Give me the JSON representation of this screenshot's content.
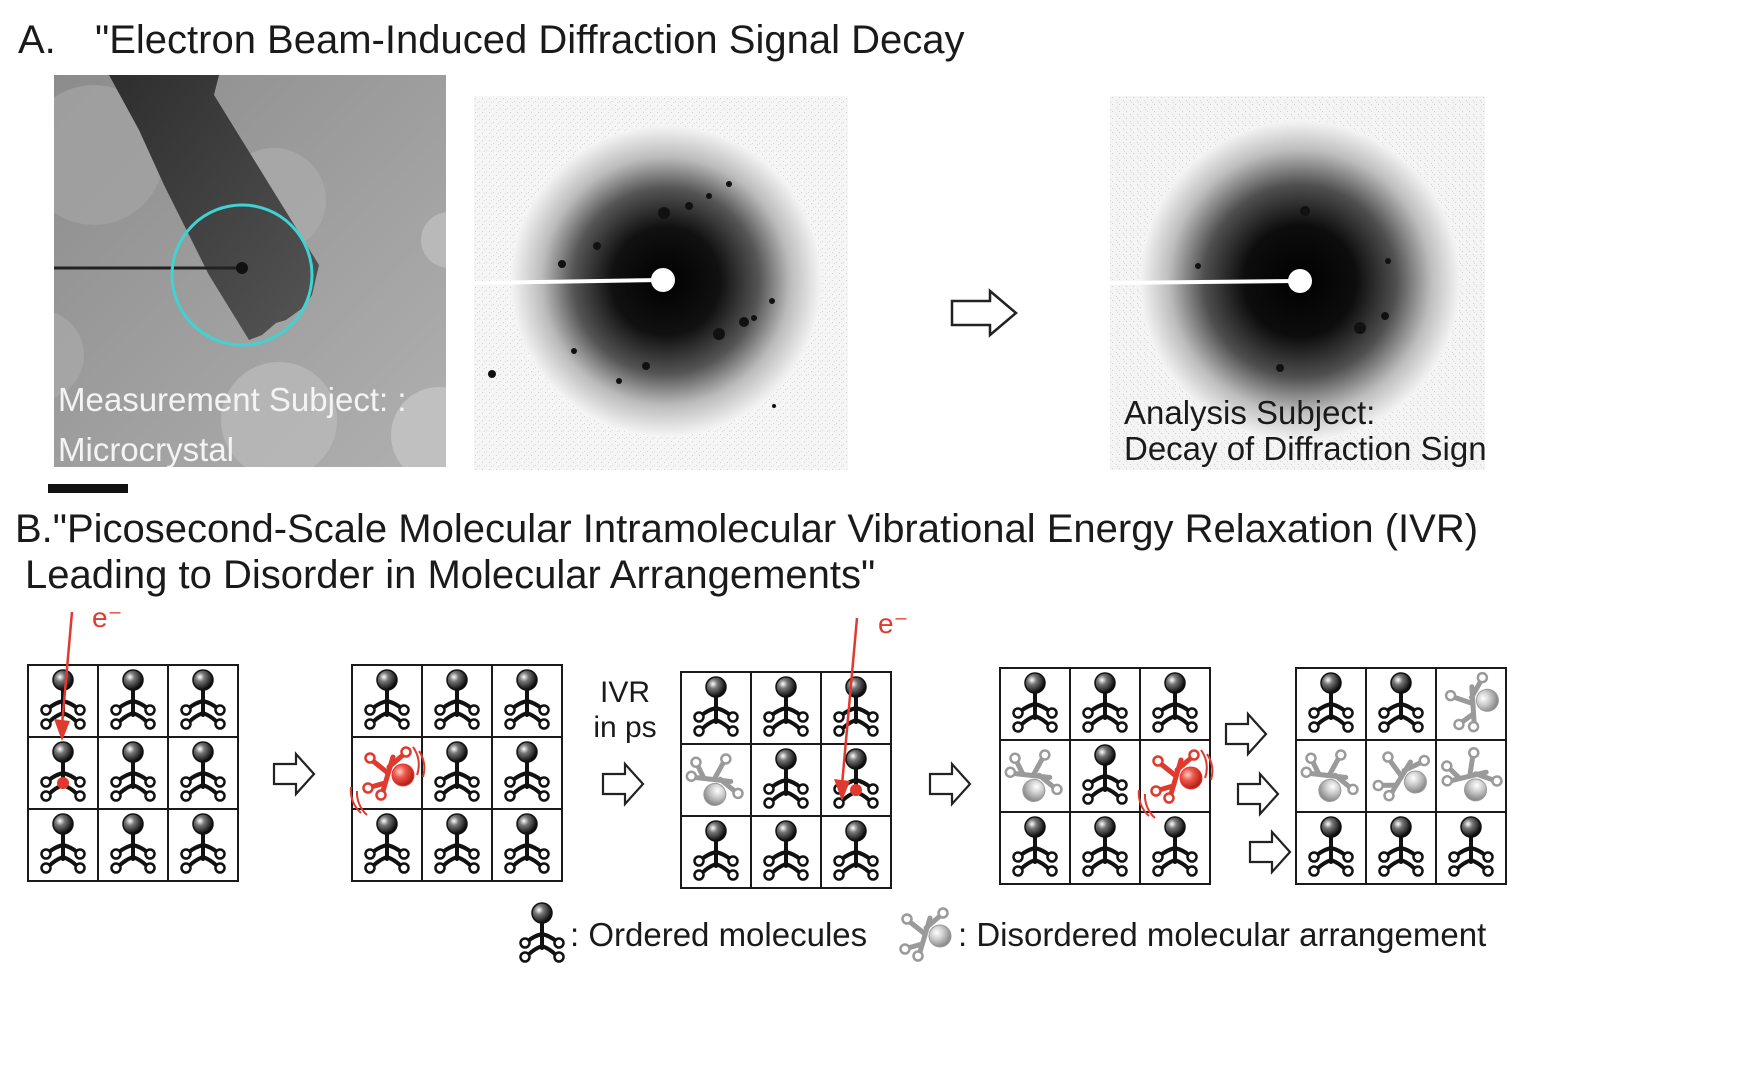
{
  "section_a": {
    "letter": "A.",
    "title": "\"Electron Beam-Induced Diffraction Signal Decay",
    "left_caption_line1": "Measurement Subject: :",
    "left_caption_line2": "Microcrystal",
    "right_caption_line1": "Analysis Subject:",
    "right_caption_line2": "Decay of Diffraction Signals"
  },
  "section_b": {
    "title_line1": "B.\"Picosecond-Scale Molecular Intramolecular Vibrational Energy Relaxation (IVR)",
    "title_line2": "Leading to Disorder in Molecular Arrangements\"",
    "ivr_line1": "IVR",
    "ivr_line2": "in ps",
    "electron_label_1": "e⁻",
    "electron_label_2": "e⁻"
  },
  "legend": {
    "ordered": ": Ordered molecules",
    "disordered": ": Disordered molecular arrangement"
  },
  "colors": {
    "ordered": "#111111",
    "disordered": "#9a9a9a",
    "excited": "#e03a2f",
    "beam_circle": "#3fd4d4"
  },
  "grids": [
    [
      "O",
      "O",
      "O",
      "X",
      "O",
      "O",
      "O",
      "O",
      "O"
    ],
    [
      "O",
      "O",
      "O",
      "R",
      "O",
      "O",
      "O",
      "O",
      "O"
    ],
    [
      "O",
      "O",
      "O",
      "D",
      "O",
      "X",
      "O",
      "O",
      "O"
    ],
    [
      "O",
      "O",
      "O",
      "D",
      "O",
      "R",
      "O",
      "O",
      "O"
    ],
    [
      "O",
      "O",
      "D",
      "D",
      "D",
      "D",
      "O",
      "O",
      "O"
    ]
  ]
}
